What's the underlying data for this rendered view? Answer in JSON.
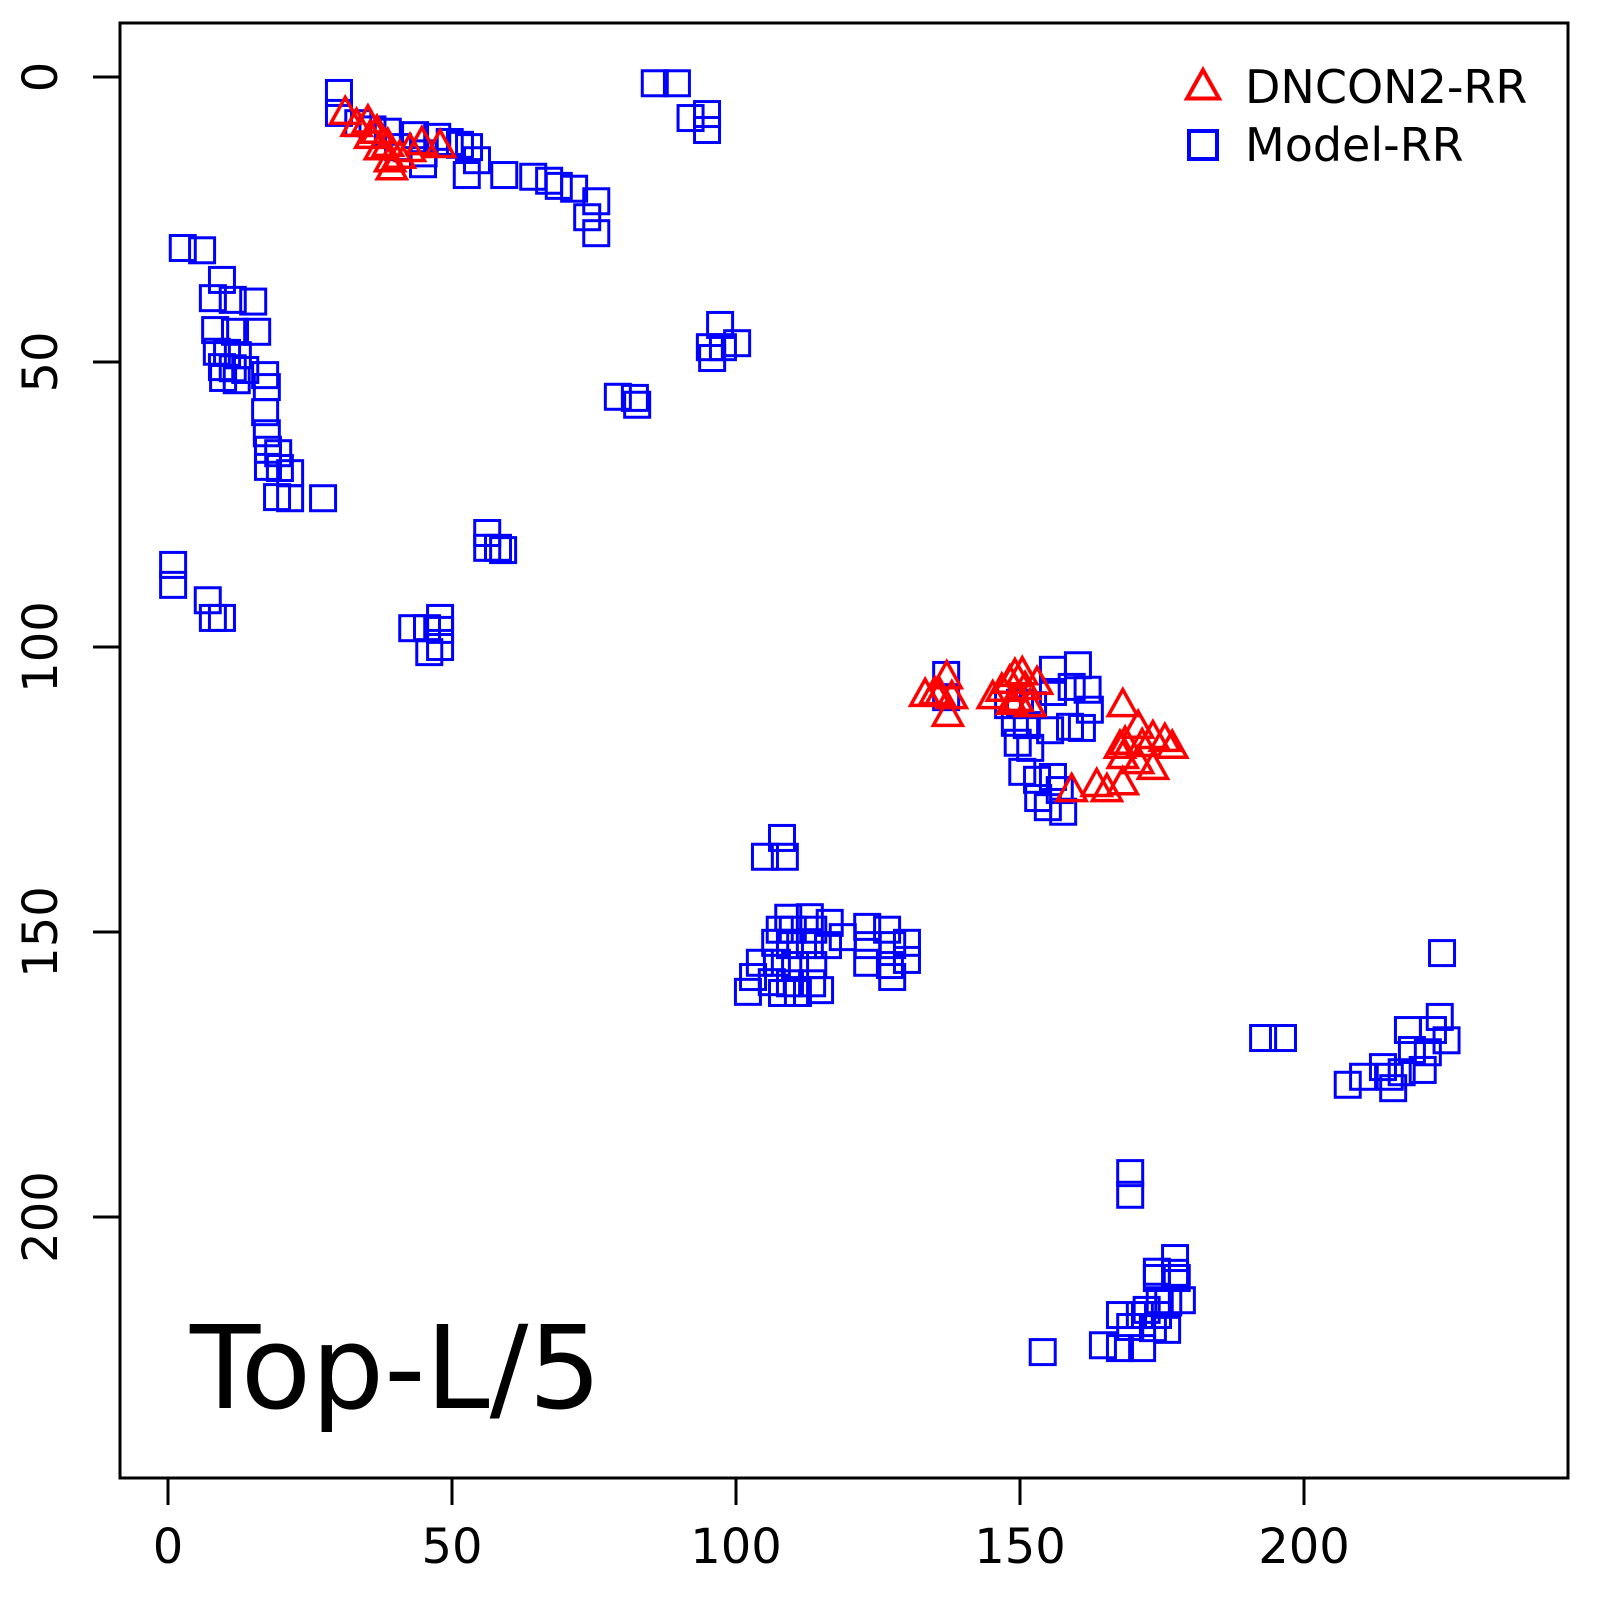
{
  "annotation": "Top-L/5",
  "colors": {
    "dncon2": "#FF0000",
    "model": "#0000FF",
    "axis": "#000000"
  },
  "legend": [
    {
      "label": "DNCON2-RR",
      "marker": "triangle",
      "color": "#FF0000"
    },
    {
      "label": "Model-RR",
      "marker": "square",
      "color": "#0000FF"
    }
  ],
  "chart_data": {
    "type": "scatter",
    "title": "",
    "xlabel": "",
    "ylabel": "",
    "annotation": "Top-L/5",
    "xlim": [
      0,
      246
    ],
    "ylim": [
      0,
      246
    ],
    "y_axis_inverted": true,
    "x_ticks": [
      0,
      50,
      100,
      150,
      200
    ],
    "y_ticks": [
      0,
      50,
      100,
      150,
      200
    ],
    "grid": false,
    "legend_position": "top-right",
    "series": [
      {
        "name": "Model-RR",
        "marker": "square",
        "color": "#0000FF",
        "points": [
          [
            30.1,
            2.8
          ],
          [
            30.1,
            6.3
          ],
          [
            33.5,
            8.1
          ],
          [
            36,
            9.2
          ],
          [
            38.7,
            9.6
          ],
          [
            40.5,
            12.3
          ],
          [
            43.5,
            10.2
          ],
          [
            45,
            13.4
          ],
          [
            44.9,
            15.3
          ],
          [
            47.4,
            10.5
          ],
          [
            49.6,
            11.4
          ],
          [
            51.4,
            11.9
          ],
          [
            53,
            12.3
          ],
          [
            54.4,
            14.6
          ],
          [
            52.6,
            17.2
          ],
          [
            59.2,
            17.2
          ],
          [
            64.3,
            17.5
          ],
          [
            67.1,
            18.2
          ],
          [
            68.8,
            19.1
          ],
          [
            71.5,
            19.6
          ],
          [
            75.4,
            21.8
          ],
          [
            73.8,
            24.6
          ],
          [
            75.4,
            27.4
          ],
          [
            85.7,
            1.1
          ],
          [
            89.6,
            1.1
          ],
          [
            92,
            7.2
          ],
          [
            94.9,
            6.5
          ],
          [
            94.9,
            9.3
          ],
          [
            2.6,
            30
          ],
          [
            6,
            30.4
          ],
          [
            9.5,
            35.6
          ],
          [
            7.9,
            38.8
          ],
          [
            11.4,
            39.1
          ],
          [
            15,
            39.4
          ],
          [
            8.3,
            44.4
          ],
          [
            11.8,
            44.7
          ],
          [
            15.7,
            44.7
          ],
          [
            8.6,
            48.2
          ],
          [
            10.4,
            48.4
          ],
          [
            12.3,
            48.8
          ],
          [
            9.5,
            50.9
          ],
          [
            11.4,
            51.1
          ],
          [
            13.6,
            51.4
          ],
          [
            9.7,
            52.8
          ],
          [
            12.1,
            53.2
          ],
          [
            17.1,
            52.3
          ],
          [
            17.4,
            54.4
          ],
          [
            17.1,
            58.8
          ],
          [
            17.4,
            62.5
          ],
          [
            17.6,
            65.4
          ],
          [
            19.4,
            66
          ],
          [
            17.6,
            68.4
          ],
          [
            19.7,
            68.6
          ],
          [
            21.5,
            69.5
          ],
          [
            19.2,
            73.7
          ],
          [
            21.5,
            73.9
          ],
          [
            27.3,
            73.9
          ],
          [
            0.9,
            85.6
          ],
          [
            0.9,
            89.1
          ],
          [
            7,
            91.8
          ],
          [
            7.9,
            94.9
          ],
          [
            9.5,
            94.9
          ],
          [
            56.2,
            80
          ],
          [
            56.2,
            82.6
          ],
          [
            58.1,
            82.6
          ],
          [
            59,
            83
          ],
          [
            43,
            96.7
          ],
          [
            45.6,
            96.7
          ],
          [
            47.9,
            94.9
          ],
          [
            47.9,
            97
          ],
          [
            47.9,
            100
          ],
          [
            46,
            100.9
          ],
          [
            97.2,
            43.5
          ],
          [
            95.4,
            47.4
          ],
          [
            97.7,
            47.4
          ],
          [
            100.2,
            46.7
          ],
          [
            95.8,
            49.3
          ],
          [
            79.2,
            56.1
          ],
          [
            82.2,
            56.3
          ],
          [
            82.6,
            57.5
          ],
          [
            137,
            104.9
          ],
          [
            137,
            108.8
          ],
          [
            155.8,
            104
          ],
          [
            160.2,
            103.2
          ],
          [
            159.1,
            107
          ],
          [
            155.8,
            107.9
          ],
          [
            161.9,
            107.5
          ],
          [
            162.3,
            111
          ],
          [
            160.9,
            114.2
          ],
          [
            152.3,
            110.2
          ],
          [
            150,
            109.8
          ],
          [
            147.9,
            110.2
          ],
          [
            149.1,
            113.3
          ],
          [
            151.2,
            113.7
          ],
          [
            149.6,
            116.8
          ],
          [
            151.8,
            117.7
          ],
          [
            155.3,
            114.6
          ],
          [
            158.8,
            114
          ],
          [
            150.4,
            121.9
          ],
          [
            153,
            123.3
          ],
          [
            153.2,
            126.5
          ],
          [
            155.8,
            122.8
          ],
          [
            157,
            125.1
          ],
          [
            154.9,
            128.1
          ],
          [
            157.6,
            128.9
          ],
          [
            105.1,
            136.8
          ],
          [
            108.1,
            133.5
          ],
          [
            108.6,
            136.8
          ],
          [
            109.2,
            147.5
          ],
          [
            113,
            147.4
          ],
          [
            107.7,
            149.6
          ],
          [
            110,
            149.6
          ],
          [
            113.6,
            149.6
          ],
          [
            116.5,
            148.4
          ],
          [
            106.9,
            151.9
          ],
          [
            109.5,
            152.3
          ],
          [
            113,
            152.3
          ],
          [
            116.2,
            152.3
          ],
          [
            118.8,
            150.9
          ],
          [
            104.2,
            155.4
          ],
          [
            107.2,
            155.4
          ],
          [
            110.4,
            155.8
          ],
          [
            113.6,
            155.8
          ],
          [
            103,
            157.9
          ],
          [
            106.3,
            158.8
          ],
          [
            109.5,
            159
          ],
          [
            113.4,
            159
          ],
          [
            102.1,
            160.5
          ],
          [
            108.1,
            160.7
          ],
          [
            110.9,
            160.7
          ],
          [
            114.8,
            160.2
          ],
          [
            123.1,
            149.1
          ],
          [
            126.6,
            149.6
          ],
          [
            123.2,
            152.3
          ],
          [
            127.5,
            152.3
          ],
          [
            130.1,
            151.9
          ],
          [
            123.1,
            155.4
          ],
          [
            127.1,
            155.8
          ],
          [
            130.1,
            154.9
          ],
          [
            127.5,
            157.9
          ],
          [
            224.3,
            153.7
          ],
          [
            192.8,
            168.6
          ],
          [
            196.3,
            168.6
          ],
          [
            223.9,
            164.9
          ],
          [
            218.3,
            167.2
          ],
          [
            222.7,
            167.2
          ],
          [
            221.8,
            171.1
          ],
          [
            219,
            170.7
          ],
          [
            225.1,
            169
          ],
          [
            220.9,
            174.2
          ],
          [
            217.2,
            174.6
          ],
          [
            210.4,
            175.4
          ],
          [
            215.1,
            175.4
          ],
          [
            207.7,
            176.8
          ],
          [
            215.7,
            177.4
          ],
          [
            213.9,
            173.7
          ],
          [
            169.4,
            192.3
          ],
          [
            169.4,
            196.1
          ],
          [
            177.3,
            207.2
          ],
          [
            174.1,
            209.6
          ],
          [
            177.3,
            209.8
          ],
          [
            174.1,
            210.7
          ],
          [
            177.6,
            210.7
          ],
          [
            176.1,
            215
          ],
          [
            174.6,
            214.6
          ],
          [
            178.5,
            214.6
          ],
          [
            172.3,
            216.3
          ],
          [
            167.6,
            217.2
          ],
          [
            171.1,
            217.2
          ],
          [
            174.3,
            217.2
          ],
          [
            169.4,
            219.3
          ],
          [
            173.4,
            219.5
          ],
          [
            175.9,
            219.8
          ],
          [
            164.6,
            222.5
          ],
          [
            167.6,
            223
          ],
          [
            171.5,
            223
          ],
          [
            154,
            223.7
          ]
        ]
      },
      {
        "name": "DNCON2-RR",
        "marker": "triangle",
        "color": "#FF0000",
        "points": [
          [
            31.2,
            6.3
          ],
          [
            33.2,
            8.4
          ],
          [
            35.2,
            7.8
          ],
          [
            36.8,
            9.6
          ],
          [
            35.6,
            10.5
          ],
          [
            38.7,
            11.9
          ],
          [
            37.3,
            12.5
          ],
          [
            39.1,
            14.6
          ],
          [
            39.4,
            16
          ],
          [
            40.8,
            14
          ],
          [
            42.6,
            12.8
          ],
          [
            44.7,
            11.6
          ],
          [
            47.9,
            12.1
          ],
          [
            133.3,
            108.4
          ],
          [
            135,
            108.1
          ],
          [
            135.9,
            108.4
          ],
          [
            137.1,
            105.3
          ],
          [
            137.3,
            111.9
          ],
          [
            138,
            108.8
          ],
          [
            145.2,
            108.8
          ],
          [
            146.8,
            107.5
          ],
          [
            148.2,
            106.1
          ],
          [
            149.1,
            104.9
          ],
          [
            150.4,
            104.6
          ],
          [
            150.9,
            107.2
          ],
          [
            149.6,
            109.3
          ],
          [
            148.6,
            109.8
          ],
          [
            151.8,
            110.2
          ],
          [
            153,
            106.3
          ],
          [
            159.1,
            125.1
          ],
          [
            163.5,
            124.2
          ],
          [
            165.3,
            125.1
          ],
          [
            168.1,
            110.2
          ],
          [
            168.1,
            119.3
          ],
          [
            168.1,
            123.9
          ],
          [
            167.6,
            117.5
          ],
          [
            168.5,
            116.8
          ],
          [
            170.8,
            114
          ],
          [
            170.8,
            120.2
          ],
          [
            171.5,
            117.2
          ],
          [
            173.4,
            115.8
          ],
          [
            173.4,
            121.2
          ],
          [
            175.5,
            116.3
          ],
          [
            176.8,
            117.5
          ]
        ]
      }
    ]
  }
}
